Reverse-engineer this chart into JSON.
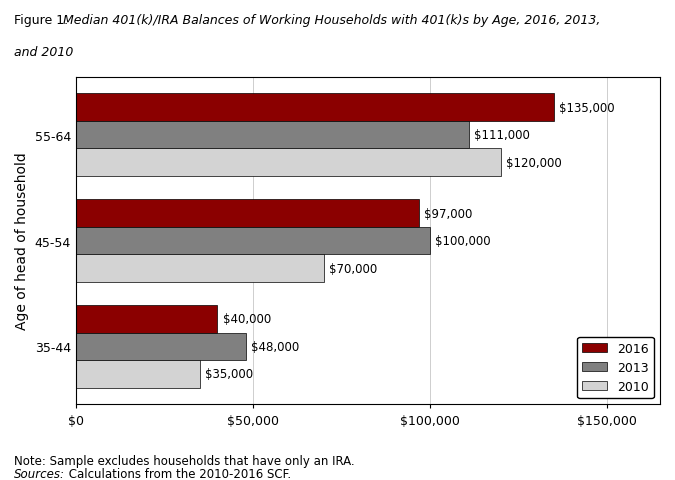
{
  "age_groups": [
    "35-44",
    "45-54",
    "55-64"
  ],
  "years": [
    "2016",
    "2013",
    "2010"
  ],
  "values": {
    "55-64": [
      135000,
      111000,
      120000
    ],
    "45-54": [
      97000,
      100000,
      70000
    ],
    "35-44": [
      40000,
      48000,
      35000
    ]
  },
  "colors": {
    "2016": "#8B0000",
    "2013": "#808080",
    "2010": "#D3D3D3"
  },
  "bar_edge_color": "#000000",
  "ylabel": "Age of head of household",
  "xlim": [
    0,
    165000
  ],
  "xlim_display": [
    0,
    150000
  ],
  "xticks": [
    0,
    50000,
    100000,
    150000
  ],
  "xticklabels": [
    "$0",
    "$50,000",
    "$100,000",
    "$150,000"
  ],
  "note_line1": "Note: Sample excludes households that have only an IRA.",
  "sources_italic_part": "Sources:",
  "sources_normal_part": " Calculations from the 2010-2016 SCF.",
  "background_color": "#ffffff",
  "bar_height": 0.26,
  "label_fontsize": 8.5,
  "tick_fontsize": 9,
  "ylabel_fontsize": 10,
  "legend_fontsize": 9,
  "title_plain": "Figure 1.",
  "title_italic": " Median 401(k)/IRA Balances of Working Households with 401(k)s by Age, 2016, 2013,",
  "title_italic2": "and 2010"
}
